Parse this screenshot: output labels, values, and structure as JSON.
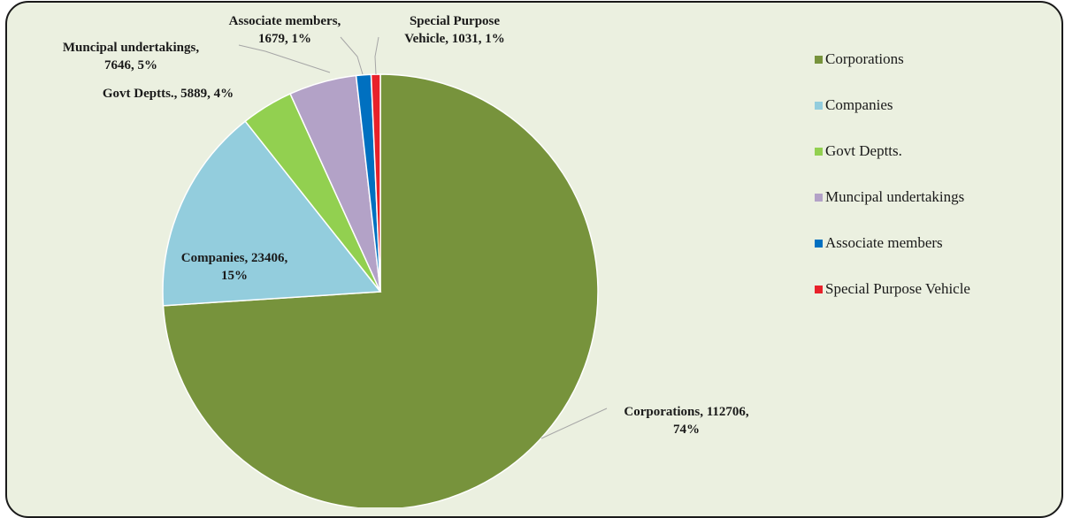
{
  "chart_data": {
    "type": "pie",
    "title": "",
    "start_angle_deg": 0,
    "direction": "clockwise",
    "legend_position": "right",
    "slices": [
      {
        "name": "Corporations",
        "value": 112706,
        "percent": "74%",
        "color": "#77933c",
        "label_lines": [
          "Corporations, 112706,",
          "74%"
        ]
      },
      {
        "name": "Companies",
        "value": 23406,
        "percent": "15%",
        "color": "#93cddd",
        "label_lines": [
          "Companies, 23406,",
          "15%"
        ]
      },
      {
        "name": "Govt Deptts.",
        "value": 5889,
        "percent": "4%",
        "color": "#92d050",
        "label_lines": [
          "Govt Deptts., 5889, 4%"
        ]
      },
      {
        "name": "Muncipal undertakings",
        "value": 7646,
        "percent": "5%",
        "color": "#b3a2c7",
        "label_lines": [
          "Muncipal undertakings,",
          "7646, 5%"
        ]
      },
      {
        "name": "Associate members",
        "value": 1679,
        "percent": "1%",
        "color": "#0070c0",
        "label_lines": [
          "Associate members,",
          "1679, 1%"
        ]
      },
      {
        "name": "Special Purpose Vehicle",
        "value": 1031,
        "percent": "1%",
        "color": "#e8212a",
        "label_lines": [
          "Special Purpose",
          "Vehicle, 1031, 1%"
        ]
      }
    ]
  }
}
